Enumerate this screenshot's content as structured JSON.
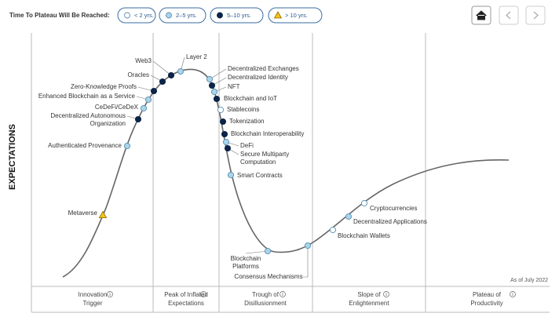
{
  "header": {
    "legend_title": "Time To Plateau Will Be Reached:",
    "legend": [
      {
        "label": "< 2 yrs.",
        "color": "#ffffff",
        "shape": "circle"
      },
      {
        "label": "2–5 yrs.",
        "color": "#a9d4ea",
        "shape": "circle"
      },
      {
        "label": "5–10 yrs.",
        "color": "#0b2447",
        "shape": "circle"
      },
      {
        "label": "> 10 yrs.",
        "color": "#f2c318",
        "shape": "triangle"
      }
    ]
  },
  "y_axis_label": "EXPECTATIONS",
  "note": "As of July 2022",
  "phases": [
    [
      "Innovation",
      "Trigger"
    ],
    [
      "Peak of Inflated",
      "Expectations"
    ],
    [
      "Trough of",
      "Disillusionment"
    ],
    [
      "Slope of",
      "Enlightenment"
    ],
    [
      "Plateau of",
      "Productivity"
    ]
  ],
  "nodes": [
    {
      "label": [
        "Metaverse"
      ],
      "plateau": "> 10 yrs."
    },
    {
      "label": [
        "Authenticated Provenance"
      ],
      "plateau": "2–5 yrs."
    },
    {
      "label": [
        "Decentralized Autonomous",
        "Organization"
      ],
      "plateau": "5–10 yrs."
    },
    {
      "label": [
        "CeDeFi/CeDeX"
      ],
      "plateau": "2–5 yrs."
    },
    {
      "label": [
        "Enhanced Blockchain as a Service"
      ],
      "plateau": "2–5 yrs."
    },
    {
      "label": [
        "Zero-Knowledge Proofs"
      ],
      "plateau": "5–10 yrs."
    },
    {
      "label": [
        "Oracles"
      ],
      "plateau": "5–10 yrs."
    },
    {
      "label": [
        "Web3"
      ],
      "plateau": "5–10 yrs."
    },
    {
      "label": [
        "Layer 2"
      ],
      "plateau": "2–5 yrs."
    },
    {
      "label": [
        "Decentralized Exchanges"
      ],
      "plateau": "2–5 yrs."
    },
    {
      "label": [
        "Decentralized Identity"
      ],
      "plateau": "5–10 yrs."
    },
    {
      "label": [
        "NFT"
      ],
      "plateau": "2–5 yrs."
    },
    {
      "label": [
        "Blockchain and IoT"
      ],
      "plateau": "5–10 yrs."
    },
    {
      "label": [
        "Stablecoins"
      ],
      "plateau": "< 2 yrs."
    },
    {
      "label": [
        "Tokenization"
      ],
      "plateau": "5–10 yrs."
    },
    {
      "label": [
        "Blockchain Interoperability"
      ],
      "plateau": "5–10 yrs."
    },
    {
      "label": [
        "DeFi"
      ],
      "plateau": "2–5 yrs."
    },
    {
      "label": [
        "Secure Multiparty",
        "Computation"
      ],
      "plateau": "5–10 yrs."
    },
    {
      "label": [
        "Smart Contracts"
      ],
      "plateau": "2–5 yrs."
    },
    {
      "label": [
        "Blockchain",
        "Platforms"
      ],
      "plateau": "2–5 yrs."
    },
    {
      "label": [
        "Consensus Mechanisms"
      ],
      "plateau": "2–5 yrs."
    },
    {
      "label": [
        "Blockchain Wallets"
      ],
      "plateau": "< 2 yrs."
    },
    {
      "label": [
        "Decentralized Applications"
      ],
      "plateau": "2–5 yrs."
    },
    {
      "label": [
        "Cryptocurrencies"
      ],
      "plateau": "< 2 yrs."
    }
  ]
}
